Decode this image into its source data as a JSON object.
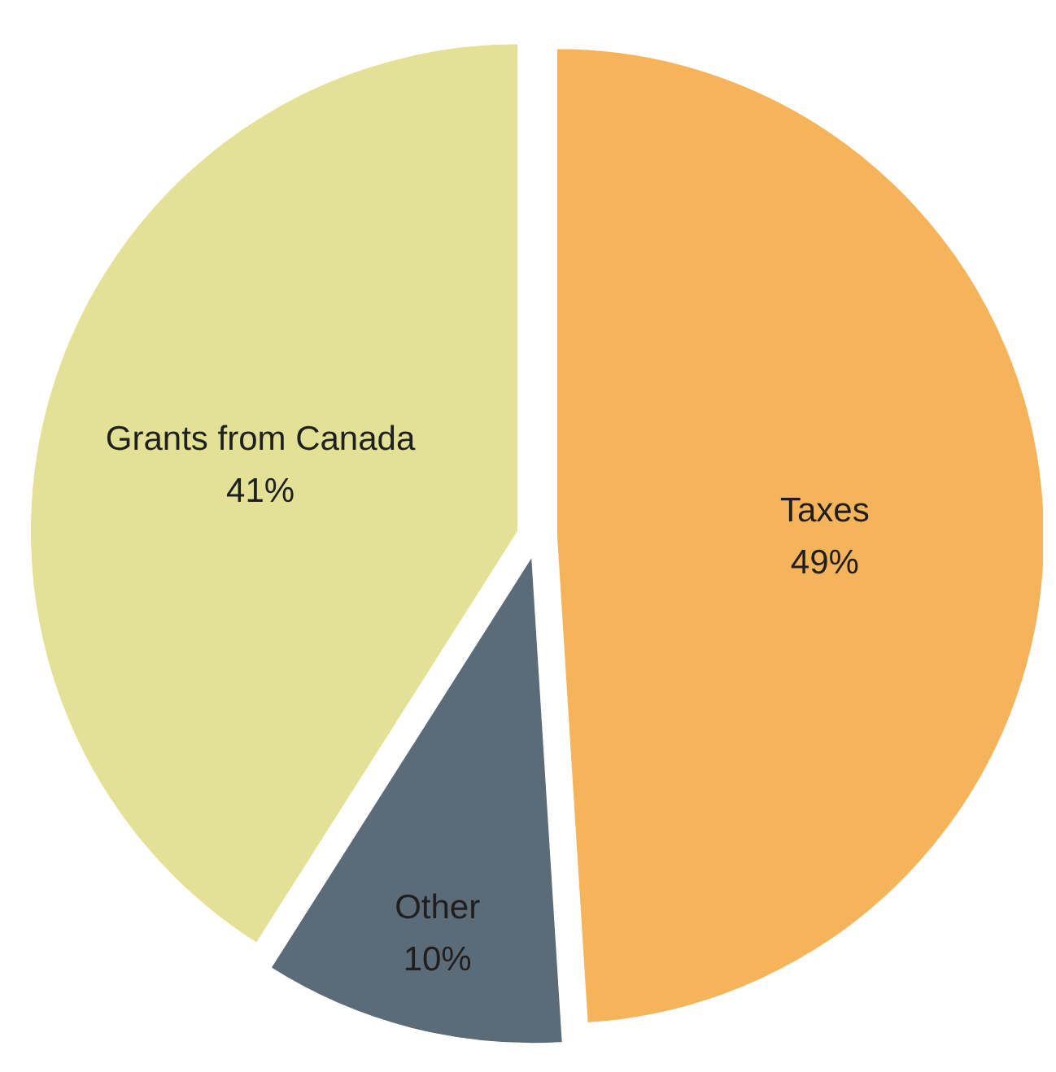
{
  "chart_data": {
    "type": "pie",
    "categories": [
      "Taxes",
      "Other",
      "Grants from Canada"
    ],
    "values": [
      49,
      10,
      41
    ],
    "colors": [
      "#f5b35a",
      "#5b6b78",
      "#e3e196"
    ],
    "value_labels": [
      "49%",
      "10%",
      "41%"
    ]
  }
}
